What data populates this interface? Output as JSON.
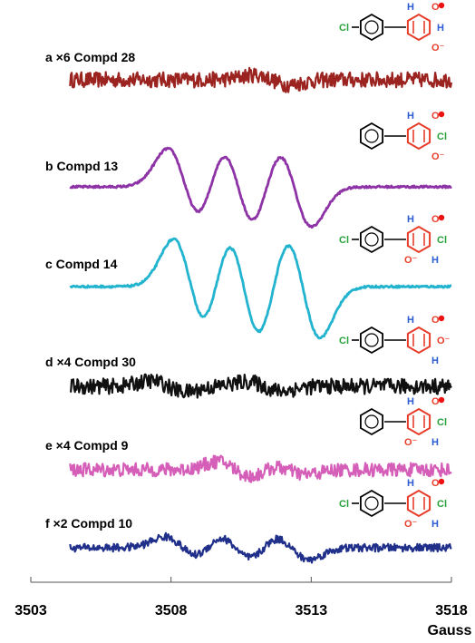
{
  "chart_data": {
    "type": "line",
    "x_ticks": [
      3503,
      3508,
      3513,
      3518
    ],
    "xlim": [
      3503,
      3518
    ],
    "x_unit": "Gauss",
    "series": [
      {
        "name": "a ×6  Compd 28",
        "letter": "a",
        "scale": "×6",
        "compound": "Compd 28",
        "color": "#9b2420",
        "noise": 0.9,
        "peaks": [
          {
            "x": 3511.6,
            "amp": 0.55
          }
        ]
      },
      {
        "name": "b  Compd 13",
        "letter": "b",
        "scale": "",
        "compound": "Compd 13",
        "color": "#8e33a6",
        "noise": 0.12,
        "peaks": [
          {
            "x": 3508.5,
            "amp": 4.2
          },
          {
            "x": 3510.4,
            "amp": 4.7
          },
          {
            "x": 3512.4,
            "amp": 4.4
          }
        ]
      },
      {
        "name": "c  Compd 14",
        "letter": "c",
        "scale": "",
        "compound": "Compd 14",
        "color": "#22b3cf",
        "noise": 0.12,
        "peaks": [
          {
            "x": 3508.7,
            "amp": 5.2
          },
          {
            "x": 3510.6,
            "amp": 6.0
          },
          {
            "x": 3512.7,
            "amp": 5.6
          }
        ]
      },
      {
        "name": "d ×4  Compd 30",
        "letter": "d",
        "scale": "×4",
        "compound": "Compd 30",
        "color": "#101010",
        "noise": 0.9,
        "peaks": [
          {
            "x": 3507.9,
            "amp": 0.6
          },
          {
            "x": 3511.3,
            "amp": 0.5
          }
        ]
      },
      {
        "name": "e ×4  Compd 9",
        "letter": "e",
        "scale": "×4",
        "compound": "Compd 9",
        "color": "#d55fb8",
        "noise": 0.8,
        "peaks": [
          {
            "x": 3510.3,
            "amp": 0.9
          },
          {
            "x": 3512.2,
            "amp": 0.5
          }
        ]
      },
      {
        "name": "f ×2  Compd 10",
        "letter": "f",
        "scale": "×2",
        "compound": "Compd 10",
        "color": "#1f2f8a",
        "noise": 0.45,
        "peaks": [
          {
            "x": 3508.4,
            "amp": 1.2
          },
          {
            "x": 3510.3,
            "amp": 1.4
          },
          {
            "x": 3512.3,
            "amp": 1.3
          }
        ]
      }
    ]
  },
  "molecules": [
    {
      "ring2_color": "#e83d2a",
      "sub_left": "Cl",
      "sub_ring": [
        "H",
        "O•",
        "H",
        "O⁻"
      ],
      "radical": "•"
    },
    {
      "ring2_color": "#e83d2a",
      "sub_left": "",
      "sub_ring": [
        "H",
        "O•",
        "Cl",
        "O⁻"
      ],
      "radical": "•"
    },
    {
      "ring2_color": "#e83d2a",
      "sub_left": "Cl",
      "sub_ring": [
        "H",
        "O•",
        "Cl",
        "H",
        "O⁻"
      ],
      "radical": "•"
    },
    {
      "ring2_color": "#e83d2a",
      "sub_left": "Cl",
      "sub_ring": [
        "H",
        "O•",
        "O⁻",
        "H"
      ],
      "radical": "•"
    },
    {
      "ring2_color": "#e83d2a",
      "sub_left": "",
      "sub_ring": [
        "H",
        "O•",
        "Cl",
        "H",
        "O⁻"
      ],
      "radical": "•"
    },
    {
      "ring2_color": "#e83d2a",
      "sub_left": "Cl",
      "sub_ring": [
        "H",
        "O•",
        "Cl",
        "H",
        "O⁻"
      ],
      "radical": "•"
    }
  ]
}
